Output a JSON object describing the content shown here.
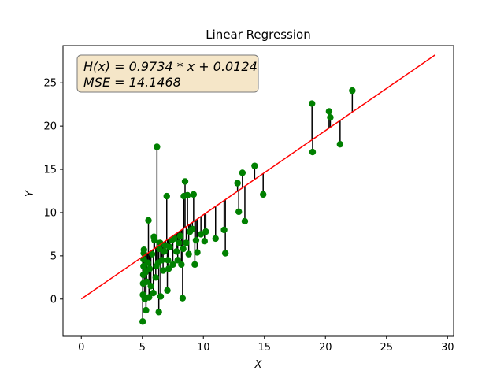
{
  "chart_data": {
    "type": "scatter",
    "title": "Linear Regression",
    "xlabel": "X",
    "ylabel": "Y",
    "xlim": [
      -1.5,
      30.5
    ],
    "ylim": [
      -4.3,
      29.3
    ],
    "xticks": [
      0,
      5,
      10,
      15,
      20,
      25,
      30
    ],
    "yticks": [
      0,
      5,
      10,
      15,
      20,
      25
    ],
    "grid": false,
    "annotation": {
      "line1": "H(x) = 0.9734 * x + 0.0124",
      "line2": "MSE = 14.1468",
      "placement": "top-left",
      "box_face": "#f5e6c8",
      "box_edge": "#7a7a7a"
    },
    "regression": {
      "slope": 0.9734,
      "intercept": 0.0124,
      "x_range": [
        0,
        29
      ],
      "color": "#ff0000"
    },
    "colors": {
      "points": "#008000",
      "residuals": "#000000"
    },
    "points": [
      [
        5.03,
        -2.6
      ],
      [
        5.05,
        0.5
      ],
      [
        5.07,
        1.8
      ],
      [
        5.08,
        2.8
      ],
      [
        5.1,
        3.8
      ],
      [
        5.1,
        4.6
      ],
      [
        5.12,
        5.3
      ],
      [
        5.13,
        5.7
      ],
      [
        5.2,
        0.0
      ],
      [
        5.25,
        3.1
      ],
      [
        5.3,
        -1.3
      ],
      [
        5.35,
        2.0
      ],
      [
        5.45,
        4.2
      ],
      [
        5.5,
        9.1
      ],
      [
        5.55,
        0.2
      ],
      [
        5.6,
        3.5
      ],
      [
        5.7,
        1.5
      ],
      [
        5.8,
        5.2
      ],
      [
        5.9,
        0.7
      ],
      [
        5.95,
        7.2
      ],
      [
        6.0,
        6.8
      ],
      [
        6.1,
        2.5
      ],
      [
        6.15,
        3.8
      ],
      [
        6.2,
        17.6
      ],
      [
        6.3,
        4.2
      ],
      [
        6.35,
        -1.5
      ],
      [
        6.4,
        5.8
      ],
      [
        6.45,
        6.5
      ],
      [
        6.5,
        0.3
      ],
      [
        6.6,
        4.5
      ],
      [
        6.7,
        3.3
      ],
      [
        6.8,
        5.5
      ],
      [
        6.9,
        6.2
      ],
      [
        7.0,
        11.9
      ],
      [
        7.05,
        1.0
      ],
      [
        7.1,
        4.5
      ],
      [
        7.15,
        3.5
      ],
      [
        7.25,
        6.0
      ],
      [
        7.4,
        6.8
      ],
      [
        7.5,
        4.0
      ],
      [
        7.6,
        7.0
      ],
      [
        7.8,
        5.5
      ],
      [
        7.9,
        4.5
      ],
      [
        8.0,
        6.5
      ],
      [
        8.1,
        7.3
      ],
      [
        8.2,
        4.0
      ],
      [
        8.3,
        0.1
      ],
      [
        8.35,
        5.8
      ],
      [
        8.4,
        11.9
      ],
      [
        8.5,
        13.6
      ],
      [
        8.6,
        6.5
      ],
      [
        8.7,
        12.0
      ],
      [
        8.8,
        5.2
      ],
      [
        8.9,
        7.8
      ],
      [
        9.1,
        8.1
      ],
      [
        9.2,
        12.1
      ],
      [
        9.3,
        4.0
      ],
      [
        9.4,
        6.8
      ],
      [
        9.5,
        5.4
      ],
      [
        9.8,
        7.5
      ],
      [
        10.1,
        6.7
      ],
      [
        10.2,
        7.8
      ],
      [
        11.0,
        7.0
      ],
      [
        11.7,
        8.0
      ],
      [
        11.8,
        5.3
      ],
      [
        12.8,
        13.4
      ],
      [
        12.9,
        10.1
      ],
      [
        13.2,
        14.6
      ],
      [
        13.4,
        9.0
      ],
      [
        14.2,
        15.4
      ],
      [
        14.9,
        12.1
      ],
      [
        18.9,
        22.6
      ],
      [
        18.95,
        17.0
      ],
      [
        20.3,
        21.7
      ],
      [
        20.4,
        21.0
      ],
      [
        21.2,
        17.9
      ],
      [
        22.2,
        24.1
      ]
    ]
  }
}
